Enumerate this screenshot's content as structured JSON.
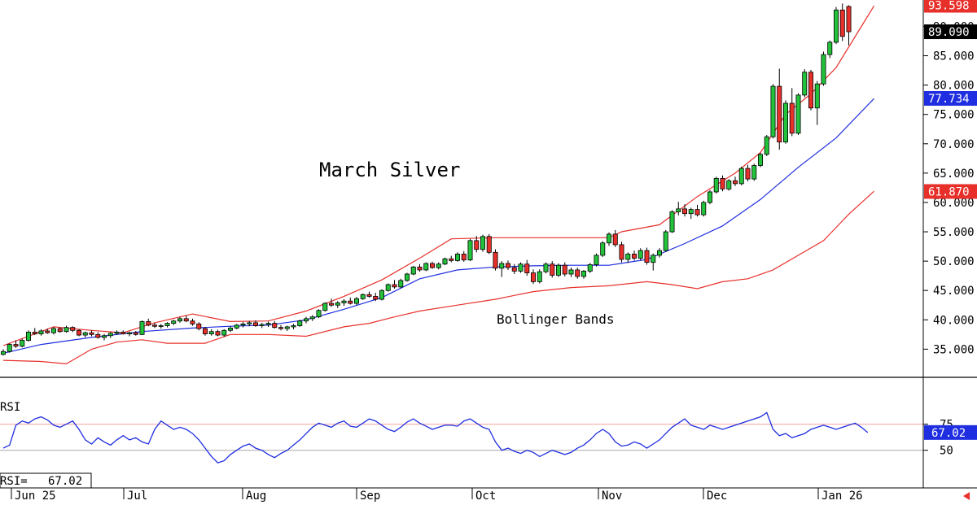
{
  "chart_data": {
    "type": "candlestick",
    "title": "March Silver",
    "annotation": "Bollinger Bands",
    "price_axis": {
      "ticks": [
        "35.000",
        "40.000",
        "45.000",
        "50.000",
        "55.000",
        "60.000",
        "65.000",
        "70.000",
        "75.000",
        "80.000",
        "85.000",
        "90.000"
      ],
      "range": [
        30.2,
        94.5
      ]
    },
    "price_tags": [
      {
        "label": "93.598",
        "value": 93.598,
        "color": "#e8302b"
      },
      {
        "label": "89.090",
        "value": 89.09,
        "color": "#000000"
      },
      {
        "label": "77.734",
        "value": 77.734,
        "color": "#1f2ee0"
      },
      {
        "label": "61.870",
        "value": 61.87,
        "color": "#e8302b"
      }
    ],
    "time_labels": [
      "Jun 25",
      "Jul",
      "Aug",
      "Sep",
      "Oct",
      "Nov",
      "Dec",
      "Jan 26"
    ],
    "candles": [
      [
        34.1,
        35.0,
        33.9,
        34.6
      ],
      [
        34.6,
        36.0,
        34.4,
        35.8
      ],
      [
        35.8,
        36.5,
        35.2,
        35.5
      ],
      [
        35.5,
        36.8,
        35.3,
        36.5
      ],
      [
        36.5,
        38.2,
        36.3,
        37.9
      ],
      [
        37.9,
        38.6,
        37.4,
        37.6
      ],
      [
        37.6,
        38.4,
        37.3,
        38.1
      ],
      [
        38.1,
        38.5,
        37.6,
        37.8
      ],
      [
        37.8,
        38.8,
        37.5,
        38.5
      ],
      [
        38.5,
        38.7,
        37.8,
        38.0
      ],
      [
        38.0,
        39.0,
        37.8,
        38.7
      ],
      [
        38.7,
        38.9,
        37.9,
        38.2
      ],
      [
        38.2,
        38.4,
        37.2,
        37.4
      ],
      [
        37.4,
        38.0,
        37.0,
        37.8
      ],
      [
        37.8,
        38.2,
        37.2,
        37.5
      ],
      [
        37.5,
        37.9,
        36.8,
        37.0
      ],
      [
        37.0,
        37.6,
        36.5,
        37.3
      ],
      [
        37.3,
        37.9,
        36.9,
        37.7
      ],
      [
        37.7,
        38.2,
        37.4,
        37.9
      ],
      [
        37.9,
        38.2,
        37.5,
        37.6
      ],
      [
        37.6,
        38.0,
        37.2,
        37.8
      ],
      [
        37.8,
        38.1,
        37.3,
        37.5
      ],
      [
        37.5,
        39.9,
        37.4,
        39.7
      ],
      [
        39.7,
        40.2,
        38.9,
        39.1
      ],
      [
        39.1,
        39.5,
        38.6,
        38.9
      ],
      [
        38.9,
        39.3,
        38.5,
        39.0
      ],
      [
        39.0,
        39.6,
        38.7,
        39.4
      ],
      [
        39.4,
        40.0,
        39.1,
        39.8
      ],
      [
        39.8,
        40.5,
        39.5,
        40.2
      ],
      [
        40.2,
        40.7,
        39.6,
        39.8
      ],
      [
        39.8,
        40.2,
        39.0,
        39.3
      ],
      [
        39.3,
        39.6,
        38.2,
        38.5
      ],
      [
        38.5,
        38.8,
        37.3,
        37.6
      ],
      [
        37.6,
        38.4,
        37.3,
        38.0
      ],
      [
        38.0,
        38.3,
        37.2,
        37.4
      ],
      [
        37.4,
        38.4,
        37.1,
        38.2
      ],
      [
        38.2,
        38.9,
        37.9,
        38.6
      ],
      [
        38.6,
        39.3,
        38.4,
        39.1
      ],
      [
        39.1,
        39.6,
        38.7,
        39.3
      ],
      [
        39.3,
        39.8,
        38.9,
        39.5
      ],
      [
        39.5,
        39.9,
        38.8,
        39.0
      ],
      [
        39.0,
        39.5,
        38.6,
        39.2
      ],
      [
        39.2,
        39.7,
        38.8,
        39.4
      ],
      [
        39.4,
        39.8,
        38.5,
        38.7
      ],
      [
        38.7,
        39.1,
        38.2,
        38.5
      ],
      [
        38.5,
        39.0,
        38.1,
        38.8
      ],
      [
        38.8,
        39.3,
        38.4,
        39.0
      ],
      [
        39.0,
        40.0,
        38.8,
        39.8
      ],
      [
        39.8,
        40.5,
        39.4,
        40.2
      ],
      [
        40.2,
        40.8,
        39.8,
        40.5
      ],
      [
        40.5,
        41.8,
        40.3,
        41.6
      ],
      [
        41.6,
        43.0,
        41.4,
        42.8
      ],
      [
        42.8,
        43.6,
        42.2,
        42.5
      ],
      [
        42.5,
        43.2,
        42.0,
        42.9
      ],
      [
        42.9,
        43.5,
        42.4,
        43.2
      ],
      [
        43.2,
        43.8,
        42.6,
        42.8
      ],
      [
        42.8,
        43.9,
        42.5,
        43.6
      ],
      [
        43.6,
        44.5,
        43.4,
        44.3
      ],
      [
        44.3,
        44.8,
        43.8,
        44.0
      ],
      [
        44.0,
        44.6,
        43.2,
        43.5
      ],
      [
        43.5,
        45.2,
        43.3,
        45.0
      ],
      [
        45.0,
        46.2,
        44.8,
        46.0
      ],
      [
        46.0,
        46.8,
        45.3,
        45.6
      ],
      [
        45.6,
        47.0,
        45.4,
        46.7
      ],
      [
        46.7,
        48.0,
        46.5,
        47.8
      ],
      [
        47.8,
        49.2,
        47.6,
        49.0
      ],
      [
        49.0,
        49.5,
        48.2,
        48.5
      ],
      [
        48.5,
        49.8,
        48.3,
        49.6
      ],
      [
        49.6,
        49.9,
        48.7,
        48.9
      ],
      [
        48.9,
        49.8,
        48.6,
        49.5
      ],
      [
        49.5,
        50.6,
        49.3,
        50.4
      ],
      [
        50.4,
        50.9,
        49.8,
        50.1
      ],
      [
        50.1,
        51.5,
        49.9,
        51.2
      ],
      [
        51.2,
        51.7,
        49.9,
        50.2
      ],
      [
        50.2,
        53.8,
        50.0,
        53.5
      ],
      [
        53.5,
        54.3,
        51.5,
        52.0
      ],
      [
        52.0,
        54.5,
        51.6,
        54.2
      ],
      [
        54.2,
        54.6,
        51.2,
        51.5
      ],
      [
        51.5,
        52.0,
        48.4,
        48.8
      ],
      [
        48.8,
        50.0,
        47.3,
        49.6
      ],
      [
        49.6,
        50.1,
        48.5,
        48.9
      ],
      [
        48.9,
        49.5,
        47.8,
        48.3
      ],
      [
        48.3,
        49.8,
        48.0,
        49.5
      ],
      [
        49.5,
        50.2,
        47.5,
        48.0
      ],
      [
        48.0,
        48.6,
        46.1,
        46.5
      ],
      [
        46.5,
        48.6,
        46.2,
        48.2
      ],
      [
        48.2,
        49.8,
        47.9,
        49.5
      ],
      [
        49.5,
        50.0,
        47.2,
        47.6
      ],
      [
        47.6,
        49.6,
        47.3,
        49.3
      ],
      [
        49.3,
        49.8,
        47.4,
        47.8
      ],
      [
        47.8,
        48.9,
        47.3,
        48.5
      ],
      [
        48.5,
        48.9,
        47.0,
        47.4
      ],
      [
        47.4,
        48.5,
        47.0,
        48.3
      ],
      [
        48.3,
        49.7,
        48.0,
        49.4
      ],
      [
        49.4,
        51.3,
        49.1,
        51.0
      ],
      [
        51.0,
        53.4,
        50.7,
        53.1
      ],
      [
        53.1,
        54.9,
        52.6,
        54.6
      ],
      [
        54.6,
        55.3,
        52.4,
        52.8
      ],
      [
        52.8,
        53.3,
        49.8,
        50.3
      ],
      [
        50.3,
        51.5,
        49.7,
        51.2
      ],
      [
        51.2,
        51.8,
        50.1,
        50.5
      ],
      [
        50.5,
        52.2,
        50.1,
        51.8
      ],
      [
        51.8,
        52.3,
        49.4,
        49.8
      ],
      [
        49.8,
        51.3,
        48.4,
        51.0
      ],
      [
        51.0,
        52.2,
        50.6,
        51.8
      ],
      [
        51.8,
        55.3,
        51.6,
        55.0
      ],
      [
        55.0,
        58.7,
        54.8,
        58.4
      ],
      [
        58.4,
        60.1,
        57.8,
        58.9
      ],
      [
        58.9,
        59.7,
        57.6,
        58.1
      ],
      [
        58.1,
        59.1,
        57.2,
        58.8
      ],
      [
        58.8,
        59.6,
        57.6,
        57.9
      ],
      [
        57.9,
        60.3,
        57.6,
        60.0
      ],
      [
        60.0,
        62.1,
        59.7,
        61.8
      ],
      [
        61.8,
        64.4,
        61.5,
        64.1
      ],
      [
        64.1,
        64.6,
        61.9,
        62.3
      ],
      [
        62.3,
        64.0,
        62.0,
        63.7
      ],
      [
        63.7,
        64.4,
        62.8,
        63.2
      ],
      [
        63.2,
        66.1,
        62.9,
        65.8
      ],
      [
        65.8,
        66.4,
        63.6,
        64.0
      ],
      [
        64.0,
        66.6,
        63.7,
        66.3
      ],
      [
        66.3,
        68.5,
        66.0,
        68.2
      ],
      [
        68.2,
        71.5,
        67.9,
        71.2
      ],
      [
        71.2,
        80.2,
        70.9,
        79.8
      ],
      [
        79.8,
        82.8,
        69.0,
        70.3
      ],
      [
        70.3,
        77.4,
        70.0,
        76.9
      ],
      [
        76.9,
        79.5,
        71.3,
        71.8
      ],
      [
        71.8,
        78.6,
        71.5,
        78.3
      ],
      [
        78.3,
        82.7,
        77.9,
        82.2
      ],
      [
        82.2,
        82.6,
        75.7,
        76.1
      ],
      [
        76.1,
        80.7,
        73.2,
        80.2
      ],
      [
        80.2,
        85.7,
        79.9,
        85.2
      ],
      [
        85.2,
        87.6,
        84.6,
        87.3
      ],
      [
        87.3,
        93.3,
        87.0,
        92.8
      ],
      [
        92.8,
        93.9,
        87.5,
        88.3
      ],
      [
        93.4,
        93.598,
        86.8,
        89.09
      ]
    ],
    "bollinger": {
      "upper": [
        [
          0,
          35.6
        ],
        [
          8,
          38.8
        ],
        [
          14,
          38.2
        ],
        [
          19,
          37.8
        ],
        [
          24,
          39.5
        ],
        [
          30,
          41.0
        ],
        [
          36,
          39.7
        ],
        [
          42,
          39.8
        ],
        [
          48,
          41.5
        ],
        [
          54,
          44.0
        ],
        [
          60,
          46.8
        ],
        [
          66,
          50.5
        ],
        [
          71,
          53.8
        ],
        [
          78,
          54.0
        ],
        [
          84,
          54.0
        ],
        [
          90,
          54.0
        ],
        [
          96,
          54.0
        ],
        [
          98,
          55.0
        ],
        [
          104,
          56.2
        ],
        [
          110,
          61.0
        ],
        [
          116,
          65.0
        ],
        [
          120,
          68.5
        ],
        [
          124,
          75.0
        ],
        [
          128,
          78.5
        ],
        [
          132,
          83.0
        ],
        [
          136,
          90.0
        ],
        [
          138,
          93.5
        ]
      ],
      "middle": [
        [
          0,
          34.3
        ],
        [
          6,
          35.8
        ],
        [
          14,
          37.0
        ],
        [
          22,
          38.0
        ],
        [
          30,
          38.6
        ],
        [
          36,
          38.9
        ],
        [
          42,
          39.1
        ],
        [
          48,
          40.0
        ],
        [
          54,
          41.8
        ],
        [
          60,
          43.8
        ],
        [
          66,
          47.0
        ],
        [
          72,
          48.5
        ],
        [
          78,
          49.0
        ],
        [
          84,
          49.2
        ],
        [
          90,
          49.3
        ],
        [
          96,
          49.3
        ],
        [
          102,
          50.3
        ],
        [
          108,
          53.0
        ],
        [
          114,
          56.0
        ],
        [
          120,
          60.5
        ],
        [
          126,
          66.0
        ],
        [
          132,
          71.0
        ],
        [
          138,
          77.7
        ]
      ],
      "lower": [
        [
          0,
          33.1
        ],
        [
          6,
          32.9
        ],
        [
          10,
          32.5
        ],
        [
          14,
          35.0
        ],
        [
          18,
          36.2
        ],
        [
          22,
          36.6
        ],
        [
          26,
          36.0
        ],
        [
          32,
          36.0
        ],
        [
          36,
          37.5
        ],
        [
          42,
          37.5
        ],
        [
          48,
          37.2
        ],
        [
          54,
          38.8
        ],
        [
          58,
          39.4
        ],
        [
          62,
          40.5
        ],
        [
          66,
          41.5
        ],
        [
          72,
          42.5
        ],
        [
          78,
          43.5
        ],
        [
          84,
          44.8
        ],
        [
          90,
          45.5
        ],
        [
          96,
          45.8
        ],
        [
          102,
          46.5
        ],
        [
          106,
          46.0
        ],
        [
          110,
          45.3
        ],
        [
          114,
          46.5
        ],
        [
          118,
          47.0
        ],
        [
          122,
          48.5
        ],
        [
          126,
          51.0
        ],
        [
          130,
          53.5
        ],
        [
          134,
          58.0
        ],
        [
          138,
          61.9
        ]
      ]
    },
    "rsi": {
      "label": "RSI",
      "readout": "RSI=   67.02",
      "tag": "67.02",
      "value": 67.02,
      "ticks": [
        "50",
        "75"
      ],
      "range": [
        28,
        98
      ],
      "overbought": 75,
      "midline": 50,
      "values": [
        52,
        55,
        74,
        78,
        76,
        80,
        82,
        79,
        74,
        72,
        75,
        78,
        70,
        60,
        56,
        62,
        58,
        55,
        60,
        64,
        60,
        62,
        58,
        56,
        70,
        78,
        74,
        70,
        72,
        70,
        66,
        60,
        52,
        44,
        38,
        40,
        46,
        50,
        54,
        56,
        52,
        50,
        46,
        43,
        47,
        50,
        55,
        60,
        66,
        72,
        76,
        74,
        72,
        76,
        78,
        73,
        72,
        76,
        80,
        78,
        74,
        70,
        68,
        72,
        77,
        80,
        76,
        73,
        70,
        72,
        74,
        74,
        73,
        78,
        80,
        76,
        72,
        70,
        58,
        50,
        52,
        49,
        47,
        50,
        48,
        44,
        47,
        50,
        48,
        46,
        48,
        52,
        55,
        60,
        66,
        70,
        66,
        58,
        54,
        55,
        58,
        56,
        52,
        56,
        60,
        66,
        72,
        76,
        80,
        74,
        72,
        70,
        74,
        72,
        70,
        72,
        74,
        76,
        78,
        80,
        82,
        86,
        70,
        64,
        66,
        62,
        64,
        66,
        70,
        72,
        74,
        72,
        70,
        72,
        74,
        76,
        72,
        67
      ]
    }
  }
}
